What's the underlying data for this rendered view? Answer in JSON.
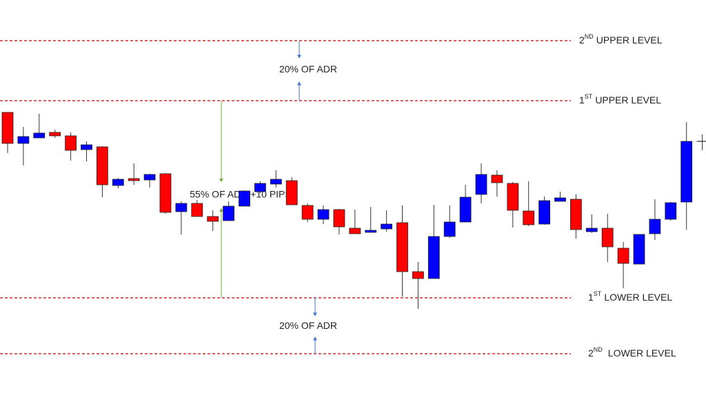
{
  "chart_data": {
    "type": "candlestick",
    "ylim": [
      0,
      570
    ],
    "up_color": "#0000ff",
    "down_color": "#ff0000",
    "flat_color": "#000000",
    "open": [
      407,
      362,
      370,
      378,
      373,
      353,
      357,
      301,
      311,
      309,
      318,
      263,
      275,
      256,
      250,
      271,
      292,
      303,
      308,
      272,
      252,
      266,
      239,
      233,
      238,
      247,
      176,
      166,
      227,
      248,
      288,
      316,
      304,
      264,
      245,
      278,
      281,
      234,
      239,
      210,
      187,
      231,
      252,
      277,
      365
    ],
    "close": [
      362,
      372,
      377,
      373,
      352,
      360,
      302,
      310,
      308,
      317,
      262,
      275,
      256,
      249,
      271,
      293,
      304,
      310,
      273,
      252,
      266,
      241,
      231,
      236,
      245,
      176,
      166,
      227,
      248,
      284,
      317,
      305,
      265,
      244,
      279,
      283,
      237,
      239,
      212,
      188,
      230,
      252,
      276,
      365,
      365
    ],
    "high": [
      407,
      386,
      405,
      382,
      378,
      365,
      358,
      312,
      333,
      318,
      319,
      278,
      280,
      265,
      278,
      294,
      307,
      323,
      313,
      275,
      272,
      267,
      266,
      270,
      265,
      272,
      190,
      273,
      272,
      302,
      333,
      323,
      306,
      307,
      285,
      292,
      288,
      259,
      260,
      219,
      230,
      281,
      277,
      393,
      375
    ],
    "low": [
      348,
      330,
      370,
      370,
      337,
      336,
      284,
      297,
      302,
      298,
      260,
      230,
      256,
      235,
      250,
      271,
      290,
      298,
      273,
      248,
      245,
      230,
      231,
      233,
      234,
      140,
      122,
      166,
      225,
      248,
      275,
      285,
      240,
      242,
      244,
      278,
      224,
      232,
      190,
      152,
      187,
      222,
      250,
      237,
      352
    ],
    "levels": [
      {
        "ordinal": "2",
        "suffix": "ND",
        "label": "UPPER LEVEL",
        "value": 511,
        "color": "#c00000"
      },
      {
        "ordinal": "1",
        "suffix": "ST",
        "label": "UPPER LEVEL",
        "value": 424,
        "color": "#c00000"
      },
      {
        "ordinal": "1",
        "suffix": "ST",
        "label": "LOWER LEVEL",
        "value": 138,
        "color": "#c00000"
      },
      {
        "ordinal": "2",
        "suffix": "ND",
        "label": "LOWER LEVEL",
        "value": 57,
        "color": "#c00000"
      }
    ],
    "annotations": [
      "20% OF ADR",
      "55% OF ADR +10 PIPS",
      "20% OF ADR"
    ]
  }
}
